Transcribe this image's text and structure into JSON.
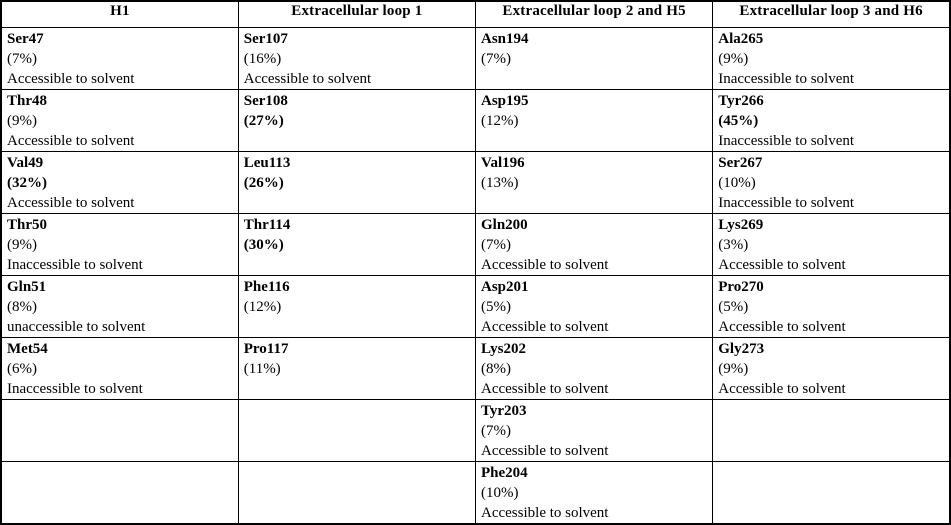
{
  "table_name": "residue-solvent-accessibility-table",
  "colors": {
    "text": "#000000",
    "border": "#000000",
    "background": "#ffffff"
  },
  "columns": [
    "H1",
    "Extracellular loop 1",
    "Extracellular loop 2 and H5",
    "Extracellular loop 3 and H6"
  ],
  "rows": [
    [
      {
        "residue": "Ser47",
        "pct": "(7%)",
        "pct_bold": false,
        "access": "Accessible to solvent"
      },
      {
        "residue": "Ser107",
        "pct": "(16%)",
        "pct_bold": false,
        "access": "Accessible to solvent"
      },
      {
        "residue": "Asn194",
        "pct": "(7%)",
        "pct_bold": false,
        "access": ""
      },
      {
        "residue": "Ala265",
        "pct": "(9%)",
        "pct_bold": false,
        "access": "Inaccessible to solvent"
      }
    ],
    [
      {
        "residue": "Thr48",
        "pct": "(9%)",
        "pct_bold": false,
        "access": "Accessible to solvent"
      },
      {
        "residue": "Ser108",
        "pct": "(27%)",
        "pct_bold": true,
        "access": ""
      },
      {
        "residue": "Asp195",
        "pct": "(12%)",
        "pct_bold": false,
        "access": ""
      },
      {
        "residue": "Tyr266",
        "pct": "(45%)",
        "pct_bold": true,
        "access": "Inaccessible to solvent"
      }
    ],
    [
      {
        "residue": "Val49",
        "pct": "(32%)",
        "pct_bold": true,
        "access": "Accessible to solvent"
      },
      {
        "residue": "Leu113",
        "pct": "(26%)",
        "pct_bold": true,
        "access": ""
      },
      {
        "residue": "Val196",
        "pct": "(13%)",
        "pct_bold": false,
        "access": ""
      },
      {
        "residue": "Ser267",
        "pct": "(10%)",
        "pct_bold": false,
        "access": "Inaccessible to solvent"
      }
    ],
    [
      {
        "residue": "Thr50",
        "pct": "(9%)",
        "pct_bold": false,
        "access": "Inaccessible to solvent"
      },
      {
        "residue": "Thr114",
        "pct": "(30%)",
        "pct_bold": true,
        "access": ""
      },
      {
        "residue": "Gln200",
        "pct": "(7%)",
        "pct_bold": false,
        "access": "Accessible to solvent"
      },
      {
        "residue": "Lys269",
        "pct": "(3%)",
        "pct_bold": false,
        "access": "Accessible to solvent"
      }
    ],
    [
      {
        "residue": "Gln51",
        "pct": "(8%)",
        "pct_bold": false,
        "access": "unaccessible to solvent"
      },
      {
        "residue": "Phe116",
        "pct": "(12%)",
        "pct_bold": false,
        "access": ""
      },
      {
        "residue": "Asp201",
        "pct": "(5%)",
        "pct_bold": false,
        "access": "Accessible to solvent"
      },
      {
        "residue": "Pro270",
        "pct": "(5%)",
        "pct_bold": false,
        "access": "Accessible to solvent"
      }
    ],
    [
      {
        "residue": "Met54",
        "pct": "(6%)",
        "pct_bold": false,
        "access": "Inaccessible to solvent"
      },
      {
        "residue": "Pro117",
        "pct": "(11%)",
        "pct_bold": false,
        "access": ""
      },
      {
        "residue": "Lys202",
        "pct": "(8%)",
        "pct_bold": false,
        "access": "Accessible to solvent"
      },
      {
        "residue": "Gly273",
        "pct": "(9%)",
        "pct_bold": false,
        "access": "Accessible to solvent"
      }
    ],
    [
      null,
      null,
      {
        "residue": "Tyr203",
        "pct": "(7%)",
        "pct_bold": false,
        "access": "Accessible to solvent"
      },
      null
    ],
    [
      null,
      null,
      {
        "residue": "Phe204",
        "pct": "(10%)",
        "pct_bold": false,
        "access": "Accessible to solvent"
      },
      null
    ]
  ]
}
